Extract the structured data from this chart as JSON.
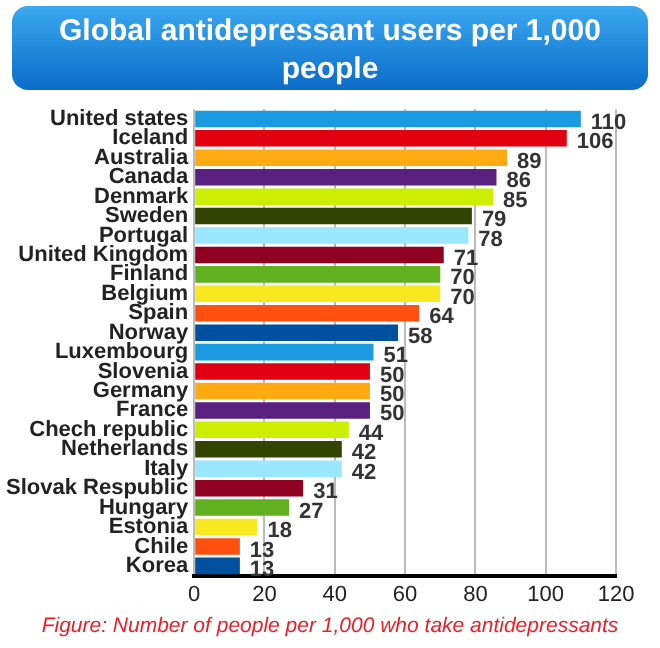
{
  "chart_data": {
    "type": "bar",
    "orientation": "horizontal",
    "title": "Global antidepressant users per 1,000 people",
    "categories": [
      "United states",
      "Iceland",
      "Australia",
      "Canada",
      "Denmark",
      "Sweden",
      "Portugal",
      "United Kingdom",
      "Finland",
      "Belgium",
      "Spain",
      "Norway",
      "Luxembourg",
      "Slovenia",
      "Germany",
      "France",
      "Chech republic",
      "Netherlands",
      "Italy",
      "Slovak Respublic",
      "Hungary",
      "Estonia",
      "Chile",
      "Korea"
    ],
    "values": [
      110,
      106,
      89,
      86,
      85,
      79,
      78,
      71,
      70,
      70,
      64,
      58,
      51,
      50,
      50,
      50,
      44,
      42,
      42,
      31,
      27,
      18,
      13,
      13
    ],
    "colors": [
      "#1a9ae0",
      "#e00010",
      "#ffaa10",
      "#5a2080",
      "#ccee00",
      "#334400",
      "#99e8ff",
      "#900020",
      "#60b020",
      "#f8e820",
      "#ff5010",
      "#0050a0",
      "#1a9ae0",
      "#e00010",
      "#ffaa10",
      "#5a2080",
      "#ccee00",
      "#334400",
      "#99e8ff",
      "#900020",
      "#60b020",
      "#f8e820",
      "#ff5010",
      "#0050a0"
    ],
    "xlim": [
      0,
      120
    ],
    "xticks": [
      0,
      20,
      40,
      60,
      80,
      100,
      120
    ],
    "grid": "x",
    "data_labels": true,
    "legend": false,
    "annotations": [
      "Figure: Number of people per 1,000 who take antidepressants"
    ]
  }
}
